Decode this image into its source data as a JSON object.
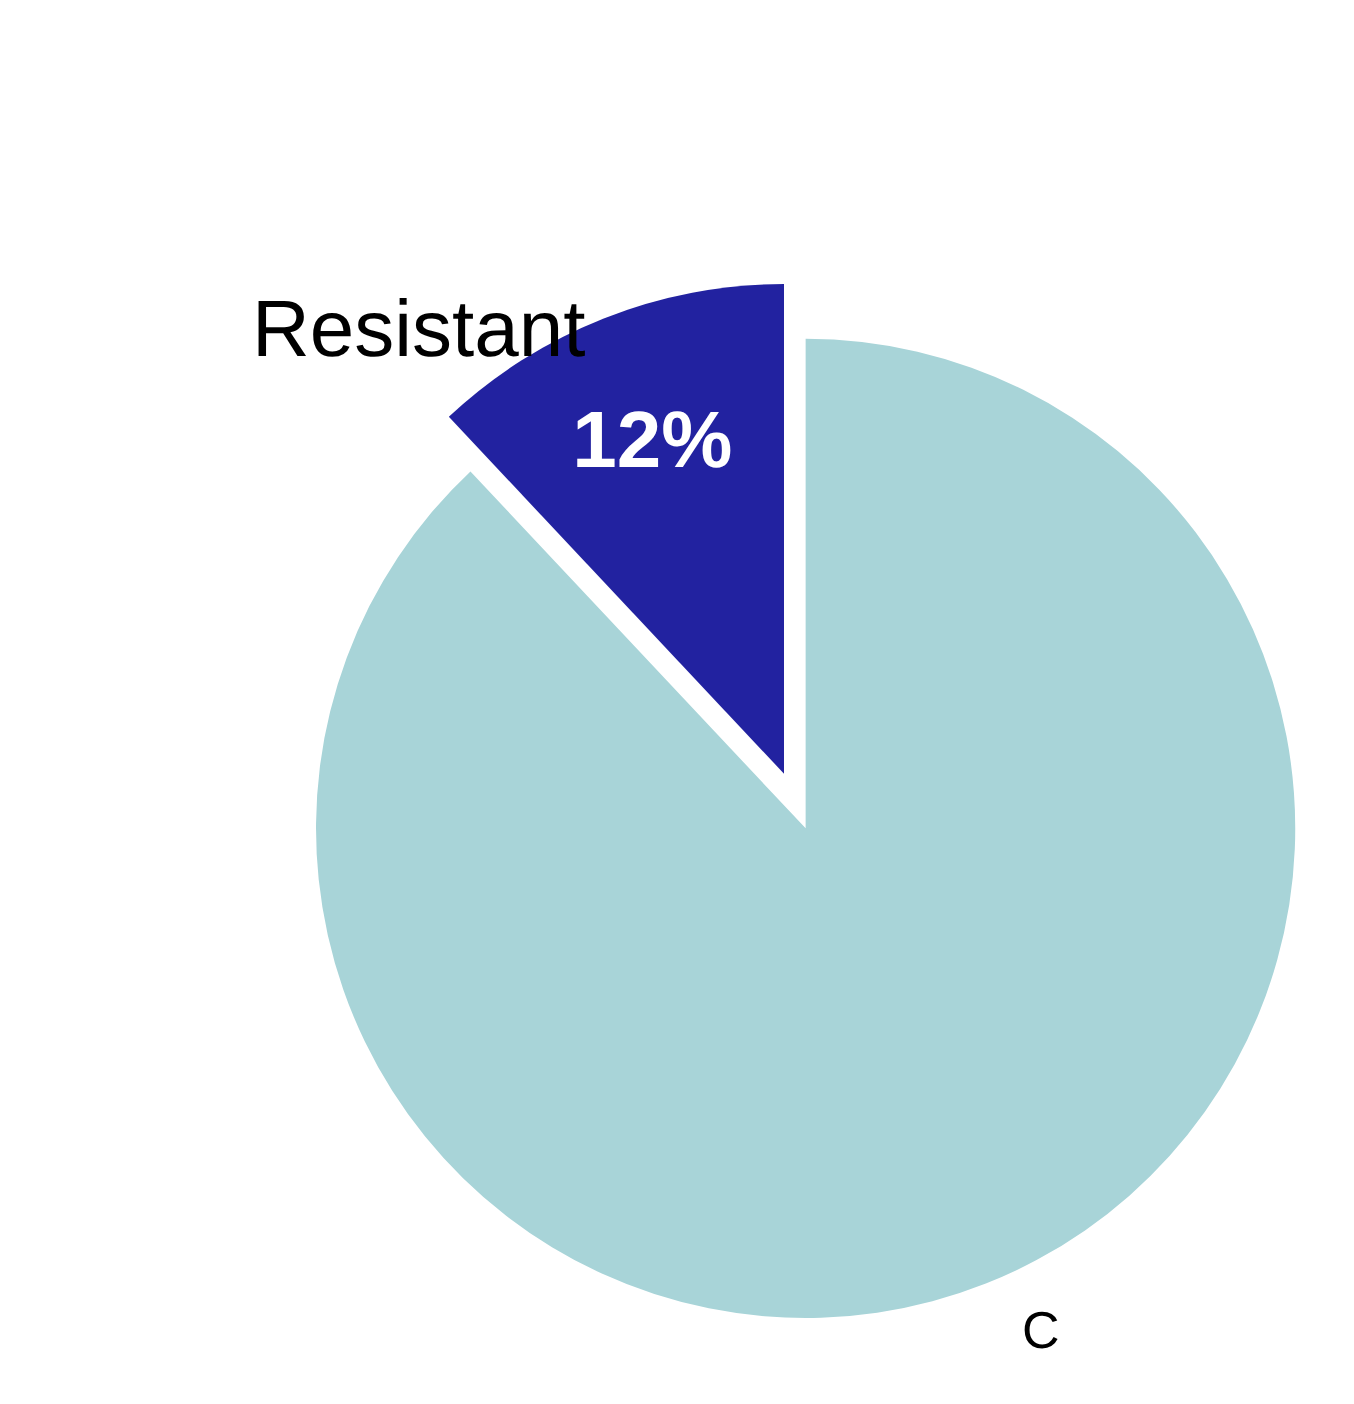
{
  "chart_data": {
    "type": "pie",
    "categories": [
      "Resistant",
      "C"
    ],
    "values": [
      12,
      88
    ],
    "colors": [
      "#2222a0",
      "#a8d4d8"
    ],
    "value_labels": [
      "12%",
      null
    ],
    "legend": false
  }
}
